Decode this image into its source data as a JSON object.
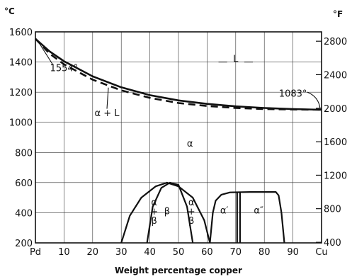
{
  "chart_data": {
    "type": "line",
    "xlabel": "Weight percentage copper",
    "ylabel_left": "°C",
    "ylabel_right": "°F",
    "xlim": [
      0,
      100
    ],
    "ylim_c": [
      200,
      1600
    ],
    "x_ticks": [
      {
        "v": 0,
        "label": "Pd"
      },
      {
        "v": 10,
        "label": "10"
      },
      {
        "v": 20,
        "label": "20"
      },
      {
        "v": 30,
        "label": "30"
      },
      {
        "v": 40,
        "label": "40"
      },
      {
        "v": 50,
        "label": "50"
      },
      {
        "v": 60,
        "label": "60"
      },
      {
        "v": 70,
        "label": "70"
      },
      {
        "v": 80,
        "label": "80"
      },
      {
        "v": 90,
        "label": "90"
      },
      {
        "v": 100,
        "label": "Cu"
      }
    ],
    "y_ticks_c": [
      200,
      400,
      600,
      800,
      1000,
      1200,
      1400,
      1600
    ],
    "y_ticks_f": [
      {
        "c": 204,
        "label": "400"
      },
      {
        "c": 427,
        "label": "800"
      },
      {
        "c": 649,
        "label": "1200"
      },
      {
        "c": 871,
        "label": "1600"
      },
      {
        "c": 1093,
        "label": "2000"
      },
      {
        "c": 1316,
        "label": "2400"
      },
      {
        "c": 1538,
        "label": "2800"
      }
    ],
    "grid": true,
    "series": [
      {
        "style": "solid",
        "points": [
          [
            0,
            1554
          ],
          [
            5,
            1470
          ],
          [
            10,
            1405
          ],
          [
            20,
            1305
          ],
          [
            30,
            1232
          ],
          [
            40,
            1180
          ],
          [
            50,
            1145
          ],
          [
            60,
            1122
          ],
          [
            70,
            1106
          ],
          [
            80,
            1095
          ],
          [
            90,
            1088
          ],
          [
            100,
            1083
          ]
        ]
      },
      {
        "style": "dashed",
        "points": [
          [
            0,
            1554
          ],
          [
            5,
            1455
          ],
          [
            10,
            1385
          ],
          [
            20,
            1283
          ],
          [
            30,
            1212
          ],
          [
            40,
            1162
          ],
          [
            50,
            1128
          ],
          [
            60,
            1108
          ],
          [
            70,
            1095
          ],
          [
            80,
            1088
          ],
          [
            90,
            1085
          ],
          [
            100,
            1083
          ]
        ]
      }
    ],
    "phase_lines": [
      {
        "points": [
          [
            30,
            200
          ],
          [
            33,
            380
          ],
          [
            37,
            500
          ],
          [
            42,
            575
          ],
          [
            46,
            600
          ],
          [
            50,
            575
          ],
          [
            55,
            500
          ],
          [
            59,
            350
          ],
          [
            61,
            200
          ]
        ]
      },
      {
        "points": [
          [
            39,
            200
          ],
          [
            41,
            440
          ],
          [
            44,
            565
          ],
          [
            47,
            600
          ],
          [
            50,
            585
          ],
          [
            53,
            440
          ],
          [
            55,
            200
          ]
        ]
      },
      {
        "points": [
          [
            61,
            200
          ],
          [
            62,
            400
          ],
          [
            63,
            480
          ],
          [
            65,
            520
          ],
          [
            68,
            535
          ],
          [
            75,
            538
          ],
          [
            84,
            538
          ],
          [
            85,
            515
          ],
          [
            86,
            400
          ],
          [
            87,
            200
          ]
        ]
      },
      {
        "points": [
          [
            70.5,
            200
          ],
          [
            70.5,
            536
          ]
        ]
      },
      {
        "points": [
          [
            71.5,
            200
          ],
          [
            71.5,
            536
          ]
        ]
      }
    ],
    "annotations": [
      {
        "text": "1554°",
        "x": 10,
        "y": 1340
      },
      {
        "text": "1083°",
        "x": 90,
        "y": 1170
      },
      {
        "text": "L",
        "x": 70,
        "y": 1400
      },
      {
        "text": "α + L",
        "x": 25,
        "y": 1040
      },
      {
        "text": "α",
        "x": 54,
        "y": 840
      },
      {
        "text": "β",
        "x": 46,
        "y": 390
      },
      {
        "text": "α′",
        "x": 66,
        "y": 395
      },
      {
        "text": "α″",
        "x": 78,
        "y": 395
      }
    ],
    "stacked_labels": [
      {
        "x": 41.5,
        "lines": [
          "α",
          "+",
          "β"
        ]
      },
      {
        "x": 54.5,
        "lines": [
          "α",
          "+",
          "β"
        ]
      }
    ]
  }
}
